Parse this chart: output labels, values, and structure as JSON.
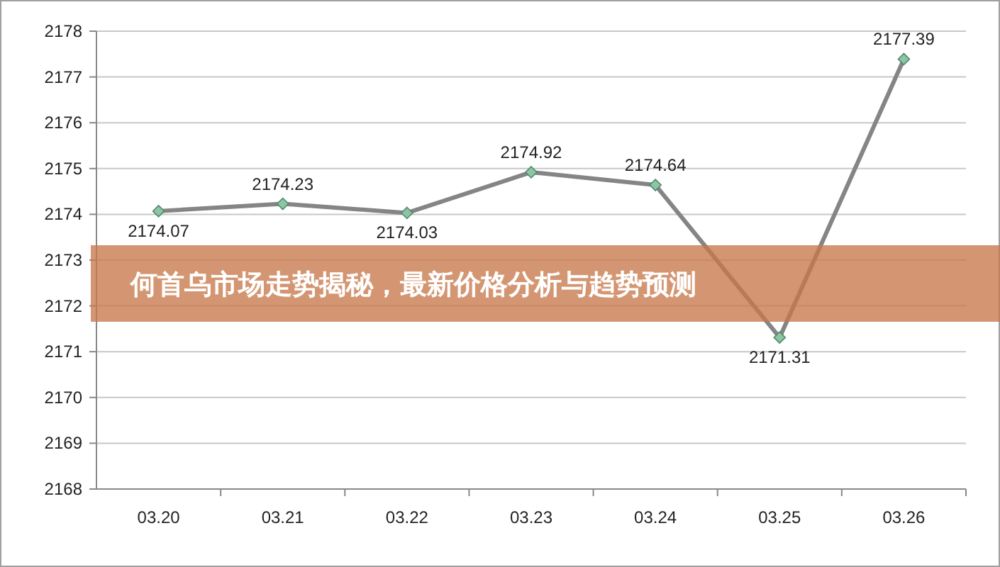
{
  "chart_data": {
    "type": "line",
    "title": "何首乌市场走势揭秘，最新价格分析与趋势预测",
    "categories": [
      "03.20",
      "03.21",
      "03.22",
      "03.23",
      "03.24",
      "03.25",
      "03.26"
    ],
    "values": [
      2174.07,
      2174.23,
      2174.03,
      2174.92,
      2174.64,
      2171.31,
      2177.39
    ],
    "color": "#858585",
    "ylim": [
      2168,
      2178
    ],
    "yticks": [
      2168,
      2169,
      2170,
      2171,
      2172,
      2173,
      2174,
      2175,
      2176,
      2177,
      2178
    ],
    "grid": "y",
    "marker": "diamond",
    "data_labels": true
  }
}
